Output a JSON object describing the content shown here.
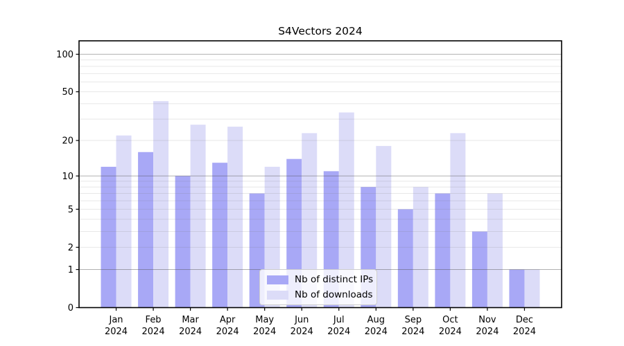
{
  "window": {
    "background": "#ffffff"
  },
  "chart_data": {
    "type": "bar",
    "title": "S4Vectors 2024",
    "categories": [
      "Jan",
      "Feb",
      "Mar",
      "Apr",
      "May",
      "Jun",
      "Jul",
      "Aug",
      "Sep",
      "Oct",
      "Nov",
      "Dec"
    ],
    "x_tick_second_line": "2024",
    "series": [
      {
        "name": "Nb of distinct IPs",
        "color": "#a8a8f6",
        "values": [
          12,
          16,
          10,
          13,
          7,
          14,
          11,
          8,
          5,
          7,
          3,
          1
        ]
      },
      {
        "name": "Nb of downloads",
        "color": "#dcdcf8",
        "values": [
          22,
          42,
          27,
          26,
          12,
          23,
          34,
          18,
          8,
          23,
          7,
          1
        ]
      }
    ],
    "xlabel": "",
    "ylabel": "",
    "yscale": "log1p",
    "ylim": [
      0,
      128
    ],
    "yticks": [
      0,
      1,
      2,
      5,
      10,
      20,
      50,
      100
    ],
    "major_gridlines": [
      1,
      10,
      100
    ],
    "minor_gridlines": [
      2,
      3,
      4,
      5,
      6,
      7,
      8,
      9,
      20,
      30,
      40,
      50,
      60,
      70,
      80,
      90
    ],
    "grid": true,
    "legend_position": "lower-center-inside",
    "colors": {
      "axis": "#000000",
      "major_grid": "#b0b0b0",
      "minor_grid": "#e6e6e6",
      "tick_label": "#000000",
      "legend_border": "#cccccc"
    }
  }
}
